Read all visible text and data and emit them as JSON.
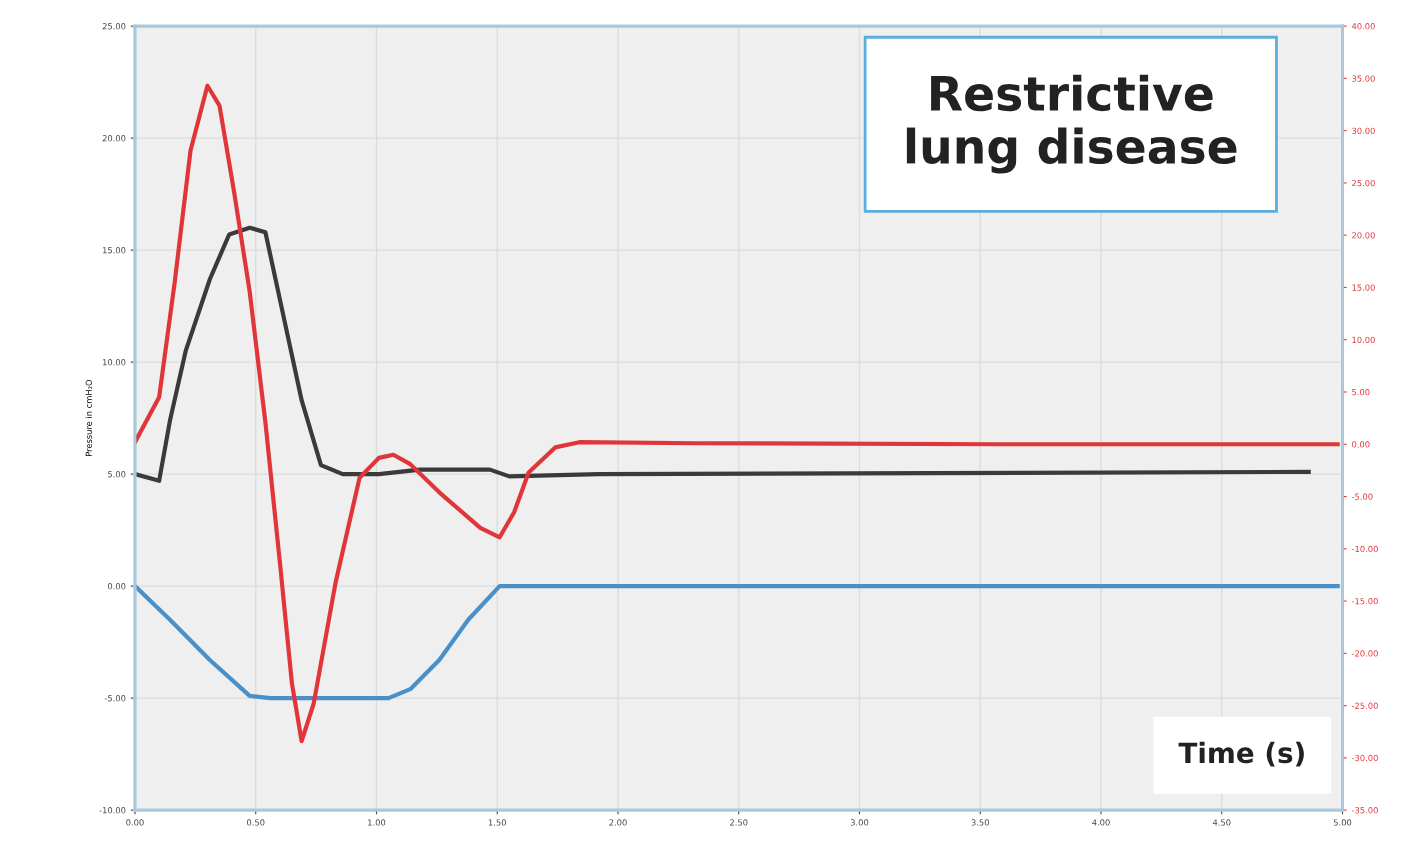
{
  "chart_data": {
    "type": "line",
    "title": "Restrictive\nlung disease",
    "xlabel": "Time (s)",
    "ylabel": "Pressure in cmH₂O",
    "xlim": [
      0,
      5
    ],
    "xticks": [
      {
        "value": 0,
        "label": "0.00"
      },
      {
        "value": 0.5,
        "label": "0.50"
      },
      {
        "value": 1,
        "label": "1.00"
      },
      {
        "value": 1.5,
        "label": "1.50"
      },
      {
        "value": 2,
        "label": "2.00"
      },
      {
        "value": 2.5,
        "label": "2.50"
      },
      {
        "value": 3,
        "label": "3.00"
      },
      {
        "value": 3.5,
        "label": "3.50"
      },
      {
        "value": 4,
        "label": "4.00"
      },
      {
        "value": 4.5,
        "label": "4.50"
      },
      {
        "value": 5,
        "label": "5.00"
      }
    ],
    "ylim": [
      -10,
      25
    ],
    "yticks": [
      {
        "value": -10,
        "label": "-10.00"
      },
      {
        "value": -5,
        "label": "-5.00"
      },
      {
        "value": 0,
        "label": "0.00"
      },
      {
        "value": 5,
        "label": "5.00"
      },
      {
        "value": 10,
        "label": "10.00"
      },
      {
        "value": 15,
        "label": "15.00"
      },
      {
        "value": 20,
        "label": "20.00"
      },
      {
        "value": 25,
        "label": "25.00"
      }
    ],
    "y2lim": [
      -35,
      40
    ],
    "y2ticks": [
      {
        "value": -35,
        "label": "-35.00"
      },
      {
        "value": -30,
        "label": "-30.00"
      },
      {
        "value": -25,
        "label": "-25.00"
      },
      {
        "value": -20,
        "label": "-20.00"
      },
      {
        "value": -15,
        "label": "-15.00"
      },
      {
        "value": -10,
        "label": "-10.00"
      },
      {
        "value": -5,
        "label": "-5.00"
      },
      {
        "value": 0,
        "label": "0.00"
      },
      {
        "value": 5,
        "label": "5.00"
      },
      {
        "value": 10,
        "label": "10.00"
      },
      {
        "value": 15,
        "label": "15.00"
      },
      {
        "value": 20,
        "label": "20.00"
      },
      {
        "value": 25,
        "label": "25.00"
      },
      {
        "value": 30,
        "label": "30.00"
      },
      {
        "value": 35,
        "label": "35.00"
      },
      {
        "value": 40,
        "label": "40.00"
      }
    ],
    "grid": true,
    "legend": false,
    "series": [
      {
        "color": "#3a3a3a",
        "x": [
          0,
          0.1,
          0.145,
          0.21,
          0.31,
          0.39,
          0.475,
          0.54,
          0.6,
          0.69,
          0.77,
          0.86,
          1.01,
          1.18,
          1.47,
          1.55,
          1.92,
          4.86
        ],
        "values": [
          5.0,
          4.7,
          7.4,
          10.5,
          13.7,
          15.7,
          16.0,
          15.8,
          12.8,
          8.3,
          5.4,
          5.0,
          5.0,
          5.2,
          5.2,
          4.9,
          5.0,
          5.1
        ]
      },
      {
        "color": "#e0353a",
        "axis": "y2",
        "x": [
          0,
          0.1,
          0.165,
          0.23,
          0.3,
          0.35,
          0.41,
          0.475,
          0.54,
          0.6,
          0.65,
          0.69,
          0.74,
          0.83,
          0.93,
          1.01,
          1.07,
          1.14,
          1.26,
          1.43,
          1.51,
          1.57,
          1.63,
          1.74,
          1.84,
          2.33,
          3.57,
          4.98
        ],
        "values": [
          0.2,
          4.5,
          15.6,
          28.1,
          34.3,
          32.4,
          24.2,
          14.6,
          2.1,
          -11.3,
          -22.9,
          -28.4,
          -24.8,
          -13.3,
          -3.2,
          -1.3,
          -1.0,
          -1.9,
          -4.6,
          -8.0,
          -8.9,
          -6.5,
          -2.7,
          -0.3,
          0.2,
          0.1,
          0.0,
          0.0
        ]
      },
      {
        "color": "#4a90c8",
        "x": [
          0,
          0.145,
          0.31,
          0.475,
          0.56,
          1.05,
          1.14,
          1.26,
          1.38,
          1.51,
          4.98
        ],
        "values": [
          0,
          -1.5,
          -3.3,
          -4.9,
          -5,
          -5,
          -4.6,
          -3.3,
          -1.5,
          0,
          0
        ]
      }
    ]
  }
}
